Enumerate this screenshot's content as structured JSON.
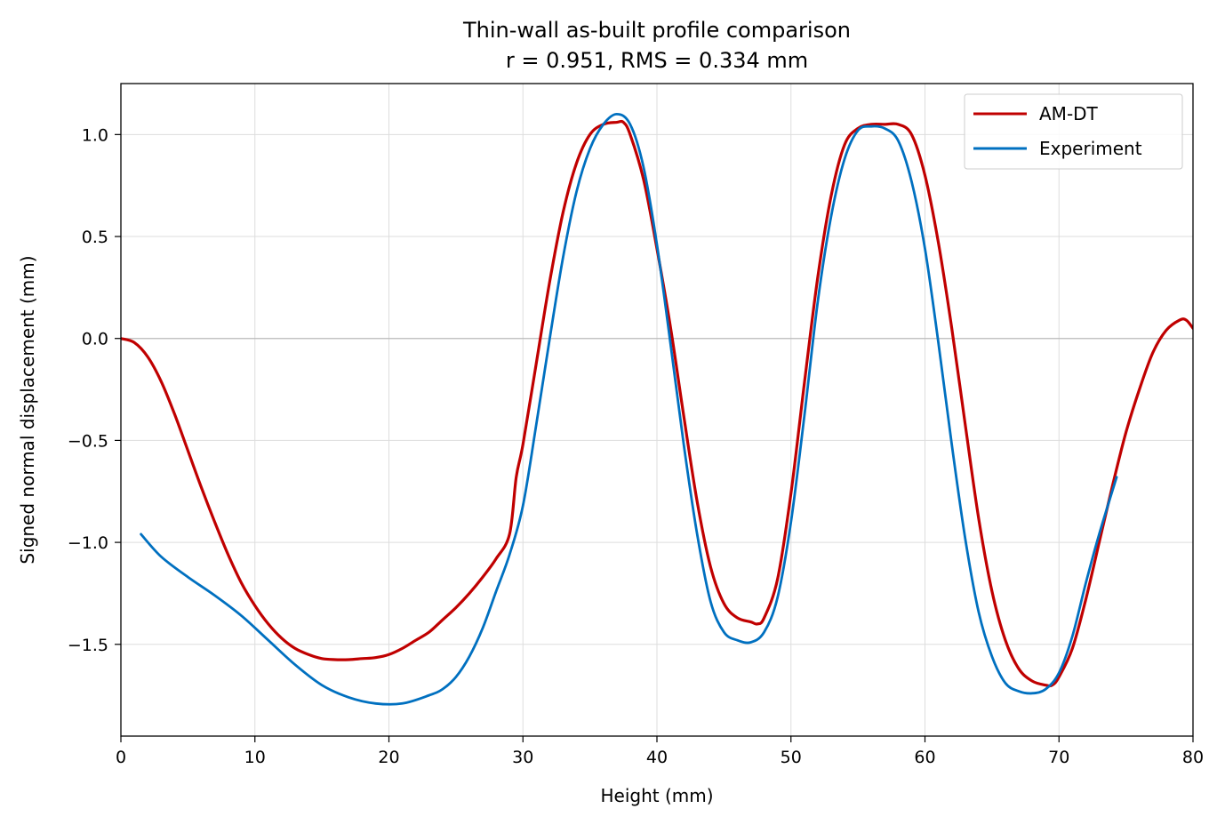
{
  "chart_data": {
    "type": "line",
    "title": "Thin-wall as-built profile comparison",
    "subtitle": "r = 0.951, RMS = 0.334 mm",
    "xlabel": "Height (mm)",
    "ylabel": "Signed normal displacement (mm)",
    "xlim": [
      0,
      80
    ],
    "ylim": [
      -1.95,
      1.25
    ],
    "xticks": [
      0,
      10,
      20,
      30,
      40,
      50,
      60,
      70,
      80
    ],
    "xtick_labels": [
      "0",
      "10",
      "20",
      "30",
      "40",
      "50",
      "60",
      "70",
      "80"
    ],
    "yticks": [
      1.0,
      0.5,
      0.0,
      -0.5,
      -1.0,
      -1.5
    ],
    "ytick_labels": [
      "1.0",
      "0.5",
      "0.0",
      "−0.5",
      "−1.0",
      "−1.5"
    ],
    "grid": true,
    "zero_line": true,
    "legend_position": "top-right",
    "series": [
      {
        "name": "AM-DT",
        "color": "#c00000",
        "x": [
          0,
          1,
          2,
          3,
          4,
          5,
          6,
          7,
          8,
          9,
          10,
          11,
          12,
          13,
          14,
          15,
          16,
          17,
          18,
          19,
          20,
          21,
          22,
          23,
          24,
          25,
          26,
          27,
          28,
          29,
          29.5,
          30,
          31,
          32,
          33,
          34,
          35,
          36,
          37,
          37.5,
          38,
          39,
          40,
          41,
          42,
          43,
          44,
          45,
          46,
          47,
          47.5,
          48,
          49,
          50,
          51,
          52,
          53,
          54,
          55,
          56,
          57,
          58,
          59,
          60,
          61,
          62,
          63,
          64,
          65,
          66,
          67,
          68,
          69,
          69.5,
          70,
          71,
          72,
          73,
          74,
          75,
          76,
          77,
          78,
          79,
          79.5,
          80
        ],
        "y": [
          0.0,
          -0.02,
          -0.09,
          -0.21,
          -0.37,
          -0.55,
          -0.73,
          -0.9,
          -1.06,
          -1.2,
          -1.31,
          -1.4,
          -1.47,
          -1.52,
          -1.55,
          -1.57,
          -1.575,
          -1.575,
          -1.57,
          -1.565,
          -1.55,
          -1.52,
          -1.48,
          -1.44,
          -1.38,
          -1.32,
          -1.25,
          -1.17,
          -1.08,
          -0.96,
          -0.68,
          -0.52,
          -0.12,
          0.28,
          0.62,
          0.86,
          1.0,
          1.05,
          1.06,
          1.06,
          1.0,
          0.78,
          0.44,
          0.06,
          -0.38,
          -0.8,
          -1.12,
          -1.3,
          -1.37,
          -1.39,
          -1.4,
          -1.37,
          -1.18,
          -0.76,
          -0.22,
          0.3,
          0.7,
          0.95,
          1.03,
          1.05,
          1.05,
          1.05,
          1.0,
          0.8,
          0.47,
          0.05,
          -0.42,
          -0.88,
          -1.24,
          -1.48,
          -1.62,
          -1.68,
          -1.7,
          -1.7,
          -1.66,
          -1.52,
          -1.28,
          -1.0,
          -0.72,
          -0.46,
          -0.25,
          -0.07,
          0.04,
          0.09,
          0.09,
          0.05
        ]
      },
      {
        "name": "Experiment",
        "color": "#0070c0",
        "x": [
          1.5,
          3,
          5,
          7,
          9,
          11,
          13,
          15,
          17,
          19,
          21,
          23,
          24,
          25,
          26,
          27,
          28,
          29,
          30,
          31,
          32,
          33,
          34,
          35,
          36,
          37,
          38,
          39,
          40,
          41,
          42,
          43,
          44,
          45,
          46,
          47,
          48,
          49,
          50,
          51,
          52,
          53,
          54,
          55,
          56,
          57,
          58,
          59,
          60,
          61,
          62,
          63,
          64,
          65,
          66,
          67,
          68,
          69,
          70,
          71,
          72,
          73,
          74.3
        ],
        "y": [
          -0.96,
          -1.07,
          -1.17,
          -1.26,
          -1.36,
          -1.48,
          -1.6,
          -1.7,
          -1.76,
          -1.79,
          -1.79,
          -1.75,
          -1.72,
          -1.66,
          -1.56,
          -1.42,
          -1.24,
          -1.06,
          -0.82,
          -0.42,
          0.0,
          0.4,
          0.72,
          0.93,
          1.05,
          1.1,
          1.05,
          0.84,
          0.46,
          -0.02,
          -0.52,
          -0.96,
          -1.29,
          -1.44,
          -1.48,
          -1.49,
          -1.44,
          -1.27,
          -0.9,
          -0.38,
          0.18,
          0.6,
          0.88,
          1.02,
          1.04,
          1.03,
          0.97,
          0.77,
          0.44,
          -0.02,
          -0.52,
          -0.98,
          -1.34,
          -1.56,
          -1.69,
          -1.73,
          -1.74,
          -1.72,
          -1.64,
          -1.46,
          -1.2,
          -0.96,
          -0.68
        ]
      }
    ]
  }
}
